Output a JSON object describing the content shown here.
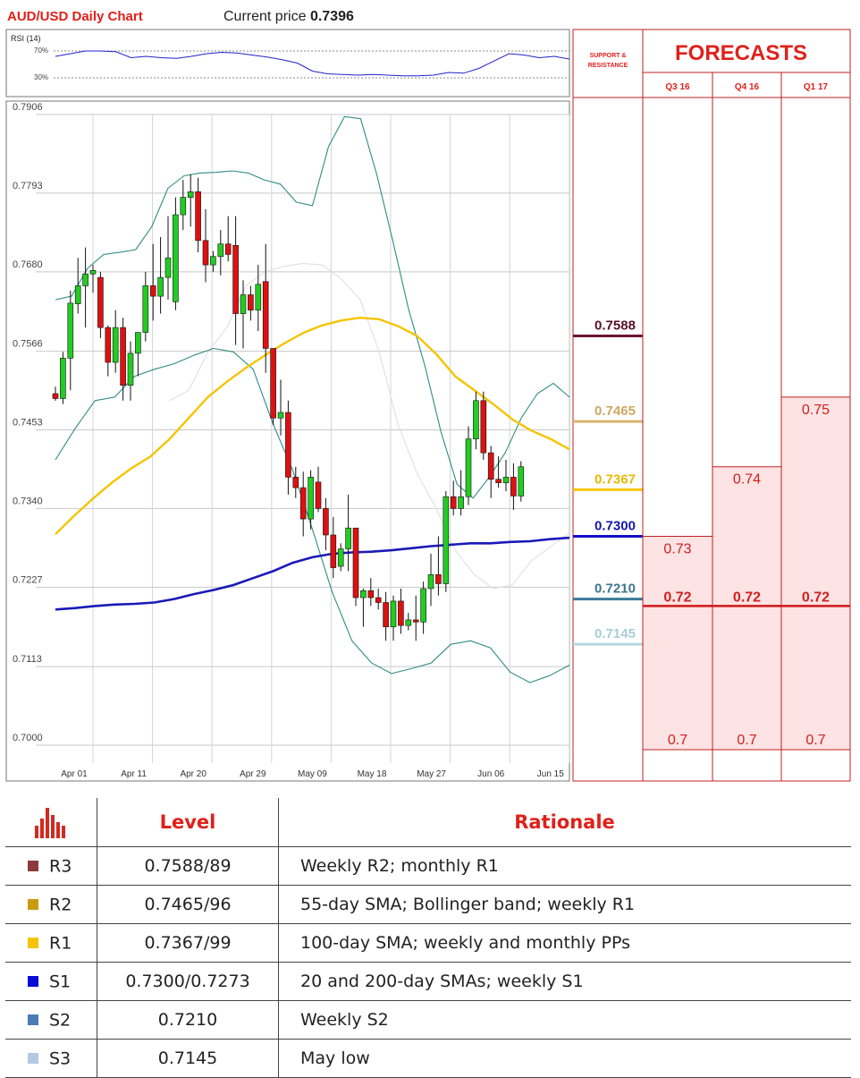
{
  "header": {
    "title": "AUD/USD Daily Chart",
    "price_label": "Current price",
    "price_value": "0.7396"
  },
  "rsi": {
    "label": "RSI (14)",
    "upper_label": "70%",
    "lower_label": "30%"
  },
  "chart_data": [
    {
      "type": "candlestick",
      "title": "AUD/USD Daily Chart",
      "y_tick_labels": [
        "0.7906",
        "0.7793",
        "0.7680",
        "0.7566",
        "0.7453",
        "0.7340",
        "0.7227",
        "0.7113",
        "0.7000"
      ],
      "x_tick_labels": [
        "Apr 01",
        "Apr 11",
        "Apr 20",
        "Apr 29",
        "May 09",
        "May 18",
        "May 27",
        "Jun 06",
        "Jun 15"
      ],
      "ylim": [
        0.7,
        0.7906
      ],
      "grid": true,
      "candles_ohlc": [
        [
          0.7505,
          0.7515,
          0.7495,
          0.7498
        ],
        [
          0.7498,
          0.7565,
          0.749,
          0.7556
        ],
        [
          0.7556,
          0.7653,
          0.751,
          0.7635
        ],
        [
          0.7634,
          0.77,
          0.762,
          0.766
        ],
        [
          0.766,
          0.7715,
          0.76,
          0.7677
        ],
        [
          0.7677,
          0.769,
          0.765,
          0.7682
        ],
        [
          0.7672,
          0.768,
          0.7585,
          0.76
        ],
        [
          0.76,
          0.7603,
          0.753,
          0.755
        ],
        [
          0.755,
          0.7625,
          0.7535,
          0.76
        ],
        [
          0.76,
          0.7614,
          0.7495,
          0.7517
        ],
        [
          0.7517,
          0.758,
          0.7495,
          0.7563
        ],
        [
          0.7563,
          0.7588,
          0.753,
          0.7593
        ],
        [
          0.7593,
          0.768,
          0.758,
          0.766
        ],
        [
          0.766,
          0.772,
          0.761,
          0.7645
        ],
        [
          0.7645,
          0.773,
          0.762,
          0.7672
        ],
        [
          0.7672,
          0.776,
          0.764,
          0.77
        ],
        [
          0.7637,
          0.7787,
          0.7625,
          0.7762
        ],
        [
          0.7762,
          0.7812,
          0.774,
          0.7787
        ],
        [
          0.7787,
          0.782,
          0.7745,
          0.7795
        ],
        [
          0.7795,
          0.7815,
          0.7708,
          0.7725
        ],
        [
          0.7725,
          0.777,
          0.7665,
          0.769
        ],
        [
          0.769,
          0.771,
          0.768,
          0.7702
        ],
        [
          0.7702,
          0.774,
          0.7675,
          0.772
        ],
        [
          0.772,
          0.776,
          0.7695,
          0.7705
        ],
        [
          0.7718,
          0.776,
          0.7575,
          0.762
        ],
        [
          0.762,
          0.7668,
          0.757,
          0.7647
        ],
        [
          0.7647,
          0.766,
          0.761,
          0.7625
        ],
        [
          0.7625,
          0.769,
          0.7595,
          0.7662
        ],
        [
          0.7666,
          0.772,
          0.7535,
          0.757
        ],
        [
          0.757,
          0.7568,
          0.746,
          0.747
        ],
        [
          0.747,
          0.7525,
          0.7445,
          0.7478
        ],
        [
          0.7478,
          0.7495,
          0.736,
          0.7385
        ],
        [
          0.7385,
          0.74,
          0.7355,
          0.737
        ],
        [
          0.737,
          0.7393,
          0.73,
          0.7325
        ],
        [
          0.7325,
          0.7395,
          0.731,
          0.7385
        ],
        [
          0.7378,
          0.74,
          0.7335,
          0.734
        ],
        [
          0.734,
          0.7355,
          0.728,
          0.7302
        ],
        [
          0.7302,
          0.7328,
          0.724,
          0.7255
        ],
        [
          0.7257,
          0.729,
          0.725,
          0.7282
        ],
        [
          0.7282,
          0.736,
          0.725,
          0.7312
        ],
        [
          0.7312,
          0.731,
          0.72,
          0.7212
        ],
        [
          0.7212,
          0.7225,
          0.717,
          0.7222
        ],
        [
          0.7222,
          0.724,
          0.72,
          0.7212
        ],
        [
          0.7212,
          0.7225,
          0.7195,
          0.7205
        ],
        [
          0.7205,
          0.722,
          0.715,
          0.717
        ],
        [
          0.717,
          0.7215,
          0.715,
          0.7207
        ],
        [
          0.7207,
          0.7225,
          0.716,
          0.7172
        ],
        [
          0.7172,
          0.719,
          0.7165,
          0.718
        ],
        [
          0.718,
          0.7215,
          0.715,
          0.7177
        ],
        [
          0.7177,
          0.7235,
          0.716,
          0.7225
        ],
        [
          0.7225,
          0.7275,
          0.72,
          0.7245
        ],
        [
          0.7245,
          0.73,
          0.7215,
          0.7232
        ],
        [
          0.7232,
          0.7365,
          0.722,
          0.7357
        ],
        [
          0.7357,
          0.738,
          0.733,
          0.734
        ],
        [
          0.734,
          0.7395,
          0.733,
          0.7357
        ],
        [
          0.7357,
          0.7458,
          0.7345,
          0.744
        ],
        [
          0.744,
          0.7508,
          0.7425,
          0.7495
        ],
        [
          0.7495,
          0.7508,
          0.741,
          0.742
        ],
        [
          0.742,
          0.743,
          0.7355,
          0.7382
        ],
        [
          0.7382,
          0.7415,
          0.737,
          0.7377
        ],
        [
          0.7377,
          0.741,
          0.7365,
          0.7385
        ],
        [
          0.7385,
          0.7405,
          0.7338,
          0.7358
        ],
        [
          0.7358,
          0.7408,
          0.735,
          0.74
        ]
      ],
      "overlays": {
        "sma_55": [
          0.7303,
          0.733,
          0.7355,
          0.7378,
          0.7398,
          0.7415,
          0.744,
          0.747,
          0.75,
          0.7522,
          0.7542,
          0.756,
          0.7577,
          0.7592,
          0.7603,
          0.761,
          0.7614,
          0.7612,
          0.7602,
          0.7588,
          0.7562,
          0.753,
          0.751,
          0.749,
          0.7468,
          0.7452,
          0.744,
          0.7425
        ],
        "sma_200": [
          0.7195,
          0.7197,
          0.72,
          0.7202,
          0.7203,
          0.7205,
          0.721,
          0.7217,
          0.7223,
          0.723,
          0.724,
          0.725,
          0.7262,
          0.727,
          0.7275,
          0.7277,
          0.7278,
          0.728,
          0.7283,
          0.7286,
          0.7288,
          0.729,
          0.729,
          0.7292,
          0.7293,
          0.7296,
          0.7298
        ],
        "bollinger_upper": [
          0.764,
          0.7645,
          0.7685,
          0.7705,
          0.7708,
          0.7712,
          0.7745,
          0.78,
          0.7818,
          0.7822,
          0.7823,
          0.7825,
          0.7822,
          0.7812,
          0.7806,
          0.778,
          0.7775,
          0.786,
          0.7903,
          0.79,
          0.782,
          0.7725,
          0.7625,
          0.7545,
          0.745,
          0.7375,
          0.7355,
          0.7385,
          0.742,
          0.747,
          0.7505,
          0.752,
          0.75
        ],
        "bollinger_lower": [
          0.741,
          0.7455,
          0.7495,
          0.75,
          0.753,
          0.754,
          0.7548,
          0.756,
          0.757,
          0.7565,
          0.754,
          0.7462,
          0.7395,
          0.731,
          0.722,
          0.715,
          0.7118,
          0.7103,
          0.711,
          0.7118,
          0.7145,
          0.715,
          0.714,
          0.7105,
          0.709,
          0.71,
          0.7115
        ],
        "bollinger_mid": [
          0.7495,
          0.751,
          0.7565,
          0.76,
          0.766,
          0.768,
          0.7688,
          0.7692,
          0.769,
          0.767,
          0.764,
          0.7565,
          0.746,
          0.739,
          0.734,
          0.728,
          0.7245,
          0.7225,
          0.723,
          0.7265,
          0.7285,
          0.7305
        ]
      },
      "rsi_values": [
        62,
        66,
        70,
        70,
        69,
        60,
        62,
        60,
        59,
        62,
        66,
        68,
        67,
        64,
        61,
        57,
        52,
        40,
        36,
        35,
        34,
        35,
        34,
        33,
        33,
        34,
        38,
        37,
        44,
        55,
        66,
        64,
        60,
        62,
        58
      ]
    }
  ],
  "support_resistance": {
    "header": "SUPPORT & RESISTANCE",
    "levels": [
      {
        "label": "0.7588",
        "value": 0.7588,
        "color": "#6b1530",
        "text_color": "#5a0f25"
      },
      {
        "label": "0.7465",
        "value": 0.7465,
        "color": "#d9b36a",
        "text_color": "#cfa862"
      },
      {
        "label": "0.7367",
        "value": 0.7367,
        "color": "#f5c400",
        "text_color": "#e8b800"
      },
      {
        "label": "0.7300",
        "value": 0.73,
        "color": "#1010c8",
        "text_color": "#1515b0"
      },
      {
        "label": "0.7210",
        "value": 0.721,
        "color": "#3b7a9a",
        "text_color": "#3d7590"
      },
      {
        "label": "0.7145",
        "value": 0.7145,
        "color": "#b5d6e0",
        "text_color": "#a7cdd6"
      }
    ]
  },
  "forecasts": {
    "title": "FORECASTS",
    "quarters": [
      {
        "label": "Q3 16",
        "high": "0.73",
        "high_value": 0.73,
        "mid": "0.72",
        "low": "0.7"
      },
      {
        "label": "Q4 16",
        "high": "0.74",
        "high_value": 0.74,
        "mid": "0.72",
        "low": "0.7"
      },
      {
        "label": "Q1 17",
        "high": "0.75",
        "high_value": 0.75,
        "mid": "0.72",
        "low": "0.7"
      }
    ],
    "mid_value": 0.72,
    "low_value": 0.7
  },
  "levels_table": {
    "header_icon": "bar-chart-icon",
    "level_header": "Level",
    "rationale_header": "Rationale",
    "rows": [
      {
        "name": "R3",
        "color": "#8e3a3a",
        "level": "0.7588/89",
        "rationale": "Weekly R2; monthly R1"
      },
      {
        "name": "R2",
        "color": "#cc9a10",
        "level": "0.7465/96",
        "rationale": "55-day SMA; Bollinger band; weekly R1"
      },
      {
        "name": "R1",
        "color": "#f5c400",
        "level": "0.7367/99",
        "rationale": "100-day SMA; weekly and monthly PPs"
      },
      {
        "name": "S1",
        "color": "#0a0ad8",
        "level": "0.7300/0.7273",
        "rationale": "20 and 200-day SMAs; weekly S1"
      },
      {
        "name": "S2",
        "color": "#4a7ab8",
        "level": "0.7210",
        "rationale": "Weekly S2"
      },
      {
        "name": "S3",
        "color": "#b4c8e2",
        "level": "0.7145",
        "rationale": "May low"
      }
    ]
  }
}
